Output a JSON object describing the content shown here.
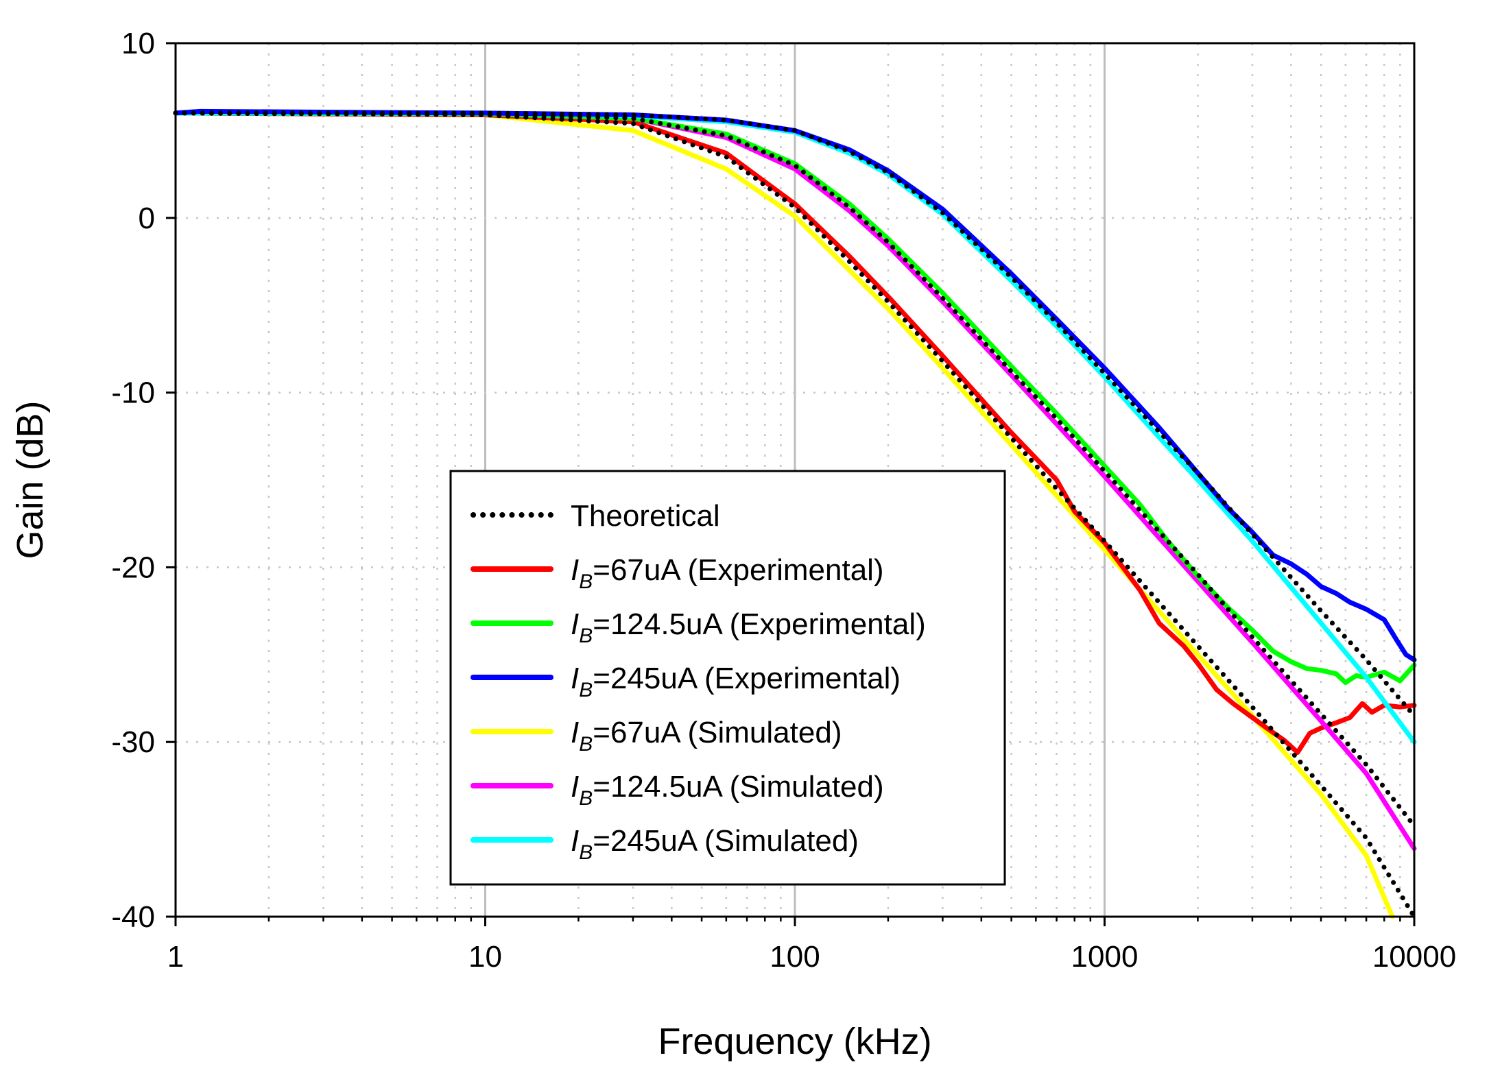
{
  "chart_data": {
    "type": "line",
    "title": "",
    "xlabel": "Frequency (kHz)",
    "ylabel": "Gain (dB)",
    "xscale": "log",
    "xlim": [
      1,
      10000
    ],
    "ylim": [
      -40,
      10
    ],
    "x_ticks": [
      1,
      10,
      100,
      1000,
      10000
    ],
    "x_tick_labels": [
      "1",
      "10",
      "100",
      "1000",
      "10000"
    ],
    "y_ticks": [
      10,
      0,
      -10,
      -20,
      -30,
      -40
    ],
    "y_tick_labels": [
      "10",
      "0",
      "-10",
      "-20",
      "-30",
      "-40"
    ],
    "grid": true,
    "legend_position": "lower-center",
    "series": [
      {
        "name": "Theoretical",
        "label_main": "Theoretical",
        "label_sub": "",
        "label_tail": "",
        "color": "#000000",
        "style": "dotted",
        "points": [
          [
            1,
            6.0
          ],
          [
            10,
            5.9
          ],
          [
            30,
            5.4
          ],
          [
            60,
            3.5
          ],
          [
            100,
            0.6
          ],
          [
            150,
            -2.5
          ],
          [
            200,
            -4.8
          ],
          [
            300,
            -8.2
          ],
          [
            500,
            -12.6
          ],
          [
            700,
            -15.5
          ],
          [
            1000,
            -18.5
          ],
          [
            2000,
            -24.5
          ],
          [
            3000,
            -28.0
          ],
          [
            5000,
            -32.5
          ],
          [
            7000,
            -35.5
          ],
          [
            10000,
            -40.0
          ]
        ],
        "points_b": [
          [
            1,
            6.0
          ],
          [
            10,
            5.95
          ],
          [
            30,
            5.7
          ],
          [
            60,
            4.7
          ],
          [
            100,
            3.0
          ],
          [
            150,
            0.6
          ],
          [
            200,
            -1.4
          ],
          [
            300,
            -4.6
          ],
          [
            500,
            -8.8
          ],
          [
            700,
            -11.5
          ],
          [
            1000,
            -14.5
          ],
          [
            2000,
            -20.4
          ],
          [
            3000,
            -24.0
          ],
          [
            5000,
            -28.4
          ],
          [
            7000,
            -31.3
          ],
          [
            10000,
            -34.8
          ]
        ],
        "points_c": [
          [
            1,
            6.0
          ],
          [
            10,
            6.0
          ],
          [
            30,
            5.9
          ],
          [
            60,
            5.6
          ],
          [
            100,
            5.0
          ],
          [
            150,
            3.8
          ],
          [
            200,
            2.6
          ],
          [
            300,
            0.3
          ],
          [
            500,
            -3.4
          ],
          [
            700,
            -6.0
          ],
          [
            1000,
            -8.9
          ],
          [
            2000,
            -14.6
          ],
          [
            3000,
            -18.1
          ],
          [
            5000,
            -22.5
          ],
          [
            7000,
            -25.3
          ],
          [
            10000,
            -28.5
          ]
        ]
      },
      {
        "name": "IB=67uA (Experimental)",
        "label_main": "I",
        "label_sub": "B",
        "label_tail": "=67uA (Experimental)",
        "color": "#ff0000",
        "style": "solid",
        "points": [
          [
            1,
            6.0
          ],
          [
            10,
            5.9
          ],
          [
            30,
            5.5
          ],
          [
            60,
            3.7
          ],
          [
            100,
            0.8
          ],
          [
            150,
            -2.2
          ],
          [
            200,
            -4.5
          ],
          [
            300,
            -7.9
          ],
          [
            500,
            -12.3
          ],
          [
            700,
            -15.0
          ],
          [
            800,
            -16.8
          ],
          [
            1000,
            -18.6
          ],
          [
            1300,
            -21.3
          ],
          [
            1500,
            -23.2
          ],
          [
            1800,
            -24.5
          ],
          [
            2000,
            -25.5
          ],
          [
            2300,
            -27.0
          ],
          [
            2600,
            -27.8
          ],
          [
            3000,
            -28.6
          ],
          [
            3400,
            -29.3
          ],
          [
            3800,
            -29.9
          ],
          [
            4200,
            -30.6
          ],
          [
            4600,
            -29.5
          ],
          [
            5000,
            -29.2
          ],
          [
            5600,
            -28.9
          ],
          [
            6200,
            -28.6
          ],
          [
            6800,
            -27.8
          ],
          [
            7300,
            -28.3
          ],
          [
            8000,
            -27.9
          ],
          [
            9000,
            -28.0
          ],
          [
            10000,
            -27.9
          ]
        ]
      },
      {
        "name": "IB=124.5uA (Experimental)",
        "label_main": "I",
        "label_sub": "B",
        "label_tail": "=124.5uA (Experimental)",
        "color": "#00ff00",
        "style": "solid",
        "points": [
          [
            1,
            6.0
          ],
          [
            10,
            5.95
          ],
          [
            30,
            5.7
          ],
          [
            60,
            4.8
          ],
          [
            100,
            3.1
          ],
          [
            150,
            0.8
          ],
          [
            200,
            -1.2
          ],
          [
            300,
            -4.3
          ],
          [
            500,
            -8.5
          ],
          [
            700,
            -11.2
          ],
          [
            1000,
            -14.2
          ],
          [
            1300,
            -16.4
          ],
          [
            1600,
            -18.5
          ],
          [
            2000,
            -20.5
          ],
          [
            2500,
            -22.3
          ],
          [
            3000,
            -23.6
          ],
          [
            3500,
            -24.8
          ],
          [
            4000,
            -25.4
          ],
          [
            4500,
            -25.8
          ],
          [
            5000,
            -25.9
          ],
          [
            5600,
            -26.1
          ],
          [
            6000,
            -26.6
          ],
          [
            6500,
            -26.2
          ],
          [
            7000,
            -26.3
          ],
          [
            8000,
            -26.0
          ],
          [
            9000,
            -26.5
          ],
          [
            10000,
            -25.6
          ]
        ]
      },
      {
        "name": "IB=245uA (Experimental)",
        "label_main": "I",
        "label_sub": "B",
        "label_tail": "=245uA (Experimental)",
        "color": "#0000ff",
        "style": "solid",
        "points": [
          [
            1,
            6.0
          ],
          [
            1.2,
            6.1
          ],
          [
            10,
            6.0
          ],
          [
            30,
            5.9
          ],
          [
            60,
            5.6
          ],
          [
            100,
            5.0
          ],
          [
            150,
            3.9
          ],
          [
            200,
            2.7
          ],
          [
            300,
            0.5
          ],
          [
            500,
            -3.2
          ],
          [
            700,
            -5.8
          ],
          [
            1000,
            -8.6
          ],
          [
            1500,
            -12.0
          ],
          [
            2000,
            -14.6
          ],
          [
            2500,
            -16.6
          ],
          [
            3000,
            -18.0
          ],
          [
            3500,
            -19.3
          ],
          [
            4000,
            -19.8
          ],
          [
            4500,
            -20.4
          ],
          [
            5000,
            -21.1
          ],
          [
            5600,
            -21.5
          ],
          [
            6200,
            -22.0
          ],
          [
            7000,
            -22.4
          ],
          [
            8000,
            -23.0
          ],
          [
            8800,
            -24.2
          ],
          [
            9400,
            -25.0
          ],
          [
            10000,
            -25.3
          ]
        ]
      },
      {
        "name": "IB=67uA (Simulated)",
        "label_main": "I",
        "label_sub": "B",
        "label_tail": "=67uA (Simulated)",
        "color": "#ffff00",
        "style": "solid",
        "points": [
          [
            1,
            6.0
          ],
          [
            10,
            5.9
          ],
          [
            30,
            5.0
          ],
          [
            60,
            2.8
          ],
          [
            100,
            0.1
          ],
          [
            150,
            -3.0
          ],
          [
            200,
            -5.2
          ],
          [
            300,
            -8.6
          ],
          [
            500,
            -13.0
          ],
          [
            700,
            -15.9
          ],
          [
            1000,
            -19.0
          ],
          [
            2000,
            -25.0
          ],
          [
            3000,
            -28.5
          ],
          [
            5000,
            -33.0
          ],
          [
            7000,
            -36.5
          ],
          [
            8500,
            -40.0
          ]
        ]
      },
      {
        "name": "IB=124.5uA (Simulated)",
        "label_main": "I",
        "label_sub": "B",
        "label_tail": "=124.5uA (Simulated)",
        "color": "#ff00ff",
        "style": "solid",
        "points": [
          [
            1,
            6.0
          ],
          [
            10,
            5.95
          ],
          [
            30,
            5.7
          ],
          [
            60,
            4.6
          ],
          [
            100,
            2.8
          ],
          [
            150,
            0.4
          ],
          [
            200,
            -1.6
          ],
          [
            300,
            -4.8
          ],
          [
            500,
            -9.0
          ],
          [
            700,
            -11.8
          ],
          [
            1000,
            -14.8
          ],
          [
            2000,
            -20.8
          ],
          [
            3000,
            -24.3
          ],
          [
            5000,
            -28.8
          ],
          [
            7000,
            -31.8
          ],
          [
            10000,
            -36.1
          ]
        ]
      },
      {
        "name": "IB=245uA (Simulated)",
        "label_main": "I",
        "label_sub": "B",
        "label_tail": "=245uA (Simulated)",
        "color": "#00ffff",
        "style": "solid",
        "points": [
          [
            1,
            6.0
          ],
          [
            10,
            6.0
          ],
          [
            30,
            5.85
          ],
          [
            60,
            5.5
          ],
          [
            100,
            4.9
          ],
          [
            150,
            3.7
          ],
          [
            200,
            2.5
          ],
          [
            300,
            0.2
          ],
          [
            500,
            -3.6
          ],
          [
            700,
            -6.2
          ],
          [
            1000,
            -9.1
          ],
          [
            2000,
            -15.0
          ],
          [
            3000,
            -18.5
          ],
          [
            5000,
            -23.2
          ],
          [
            7000,
            -26.3
          ],
          [
            10000,
            -30.0
          ]
        ]
      }
    ]
  }
}
